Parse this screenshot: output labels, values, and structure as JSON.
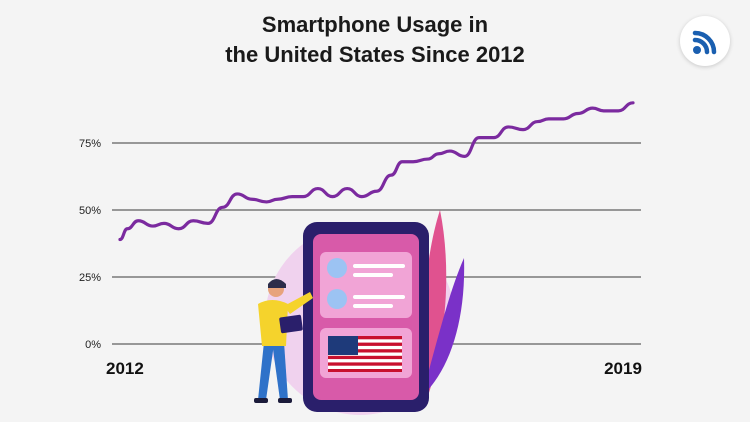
{
  "title_line1": "Smartphone Usage in",
  "title_line2": "the United States Since 2012",
  "logo_icon": "wifi-signal-icon",
  "colors": {
    "line": "#7b2a9f",
    "grid": "#3a3a3a",
    "brand": "#1a5fb0"
  },
  "chart_data": {
    "type": "line",
    "title": "Smartphone Usage in the United States Since 2012",
    "xlabel": "",
    "ylabel": "",
    "x_tick_labels": [
      "2012",
      "2019"
    ],
    "y_tick_labels": [
      "0%",
      "25%",
      "50%",
      "75%"
    ],
    "xlim": [
      2012,
      2019
    ],
    "ylim": [
      0,
      75
    ],
    "grid": true,
    "legend": "none",
    "series": [
      {
        "x": [
          2012,
          2012.1,
          2012.25,
          2012.45,
          2012.6,
          2012.8,
          2013.0,
          2013.2,
          2013.4,
          2013.6,
          2013.8,
          2014.0,
          2014.15,
          2014.35,
          2014.5,
          2014.7,
          2014.9,
          2015.1,
          2015.3,
          2015.5,
          2015.7,
          2015.85,
          2016.0,
          2016.2,
          2016.35,
          2016.5,
          2016.7,
          2016.9,
          2017.1,
          2017.3,
          2017.5,
          2017.7,
          2017.85,
          2018.05,
          2018.25,
          2018.45,
          2018.6,
          2018.8,
          2019.0
        ],
        "values": [
          39,
          43,
          46,
          44,
          45,
          43,
          46,
          45,
          51,
          56,
          54,
          53,
          54,
          55,
          55,
          58,
          55,
          58,
          55,
          57,
          63,
          68,
          68,
          69,
          71,
          72,
          70,
          77,
          77,
          81,
          80,
          83,
          84,
          84,
          86,
          88,
          87,
          87,
          90
        ]
      }
    ]
  }
}
